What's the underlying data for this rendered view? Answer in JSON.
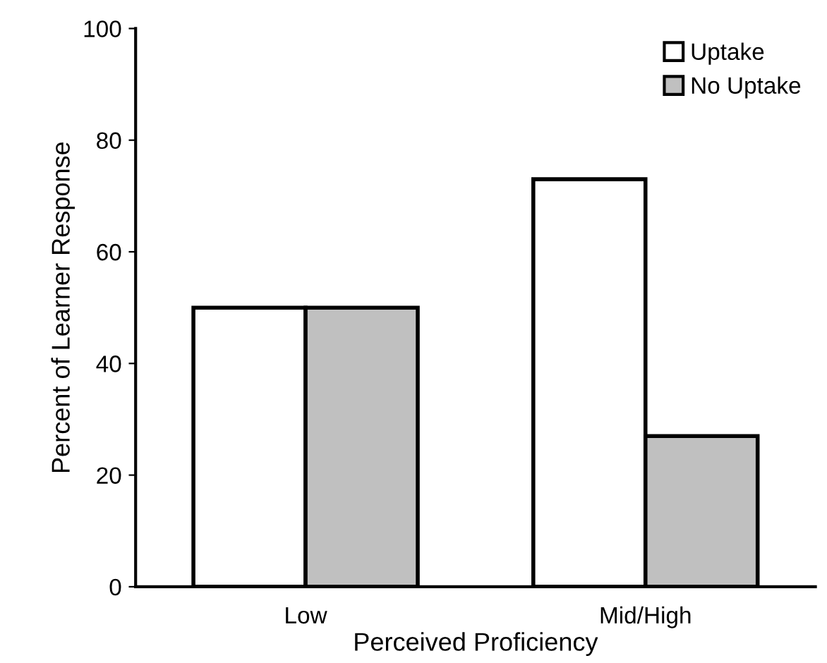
{
  "chart_data": {
    "type": "bar",
    "xlabel": "Perceived Proficiency",
    "ylabel": "Percent of Learner Response",
    "categories": [
      "Low",
      "Mid/High"
    ],
    "series": [
      {
        "name": "Uptake",
        "color": "#ffffff",
        "values": [
          50,
          73
        ]
      },
      {
        "name": "No Uptake",
        "color": "#c0c0c0",
        "values": [
          50,
          27
        ]
      }
    ],
    "ylim": [
      0,
      100
    ],
    "yticks": [
      0,
      20,
      40,
      60,
      80,
      100
    ],
    "grid": false,
    "legend": "top right"
  }
}
